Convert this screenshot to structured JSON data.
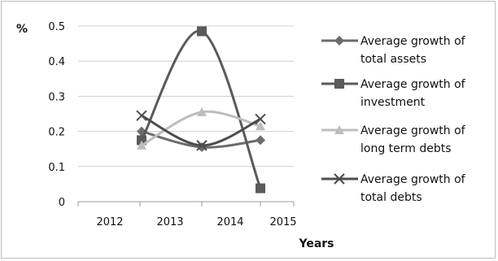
{
  "chart_data": {
    "type": "line",
    "title": "",
    "ylabel": "%",
    "xlabel": "Years",
    "x_tick_labels": [
      "2012",
      "2013",
      "2014",
      "2015"
    ],
    "y_tick_labels": [
      "0",
      "0.1",
      "0.2",
      "0.3",
      "0.4",
      "0.5"
    ],
    "ylim": [
      0,
      0.5
    ],
    "grid": true,
    "legend_position": "right",
    "smooth": true,
    "series": [
      {
        "name": "Average growth of total assets",
        "legend_lines": [
          "Average growth of",
          "total assets"
        ],
        "color": "#6b6b6b",
        "marker": "diamond",
        "values": [
          0.2,
          0.155,
          0.175
        ]
      },
      {
        "name": "Average growth of investment",
        "legend_lines": [
          "Average growth of",
          "investment"
        ],
        "color": "#5a5a5a",
        "marker": "square",
        "values": [
          0.175,
          0.485,
          0.038
        ]
      },
      {
        "name": "Average growth of long term debts",
        "legend_lines": [
          "Average growth of",
          "long term debts"
        ],
        "color": "#bdbdbd",
        "marker": "triangle",
        "values": [
          0.16,
          0.255,
          0.215
        ]
      },
      {
        "name": "Average growth of total debts",
        "legend_lines": [
          "Average growth of",
          "total debts"
        ],
        "color": "#4d4d4d",
        "marker": "x",
        "values": [
          0.245,
          0.16,
          0.235
        ]
      }
    ]
  }
}
